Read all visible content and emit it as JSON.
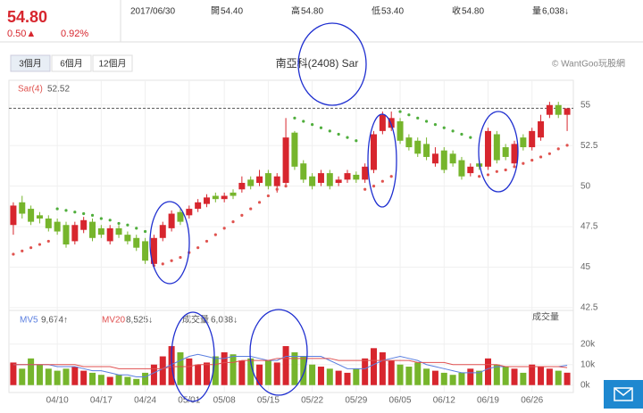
{
  "quote": {
    "price": "54.80",
    "change": "0.50▲",
    "change_pct": "0.92%",
    "date": "2017/06/30",
    "open_label": "開",
    "open": "54.40",
    "high_label": "高",
    "high": "54.80",
    "low_label": "低",
    "low": "53.40",
    "close_label": "收",
    "close": "54.80",
    "volume_label": "量",
    "volume": "6,038↓"
  },
  "range_buttons": [
    "3個月",
    "6個月",
    "12個月"
  ],
  "chart_data": {
    "type": "candlestick",
    "title": "南亞科(2408) Sar",
    "credit": "© WantGoo玩股網",
    "categories": [
      null,
      null,
      null,
      null,
      null,
      "04/10",
      null,
      null,
      null,
      null,
      "04/17",
      null,
      null,
      null,
      null,
      "04/24",
      null,
      null,
      null,
      null,
      "05/01",
      null,
      null,
      null,
      "05/08",
      null,
      null,
      null,
      null,
      "05/15",
      null,
      null,
      null,
      null,
      "05/22",
      null,
      null,
      null,
      null,
      "05/29",
      null,
      null,
      null,
      null,
      "06/05",
      null,
      null,
      null,
      null,
      "06/12",
      null,
      null,
      null,
      null,
      "06/19",
      null,
      null,
      null,
      null,
      "06/26",
      null,
      null,
      null,
      null
    ],
    "open": [
      47.6,
      49.0,
      48.6,
      48.2,
      48.0,
      47.8,
      47.6,
      46.6,
      47.3,
      47.8,
      47.4,
      46.6,
      47.4,
      47.0,
      46.8,
      46.6,
      45.2,
      46.8,
      47.4,
      48.4,
      48.2,
      48.6,
      48.9,
      49.4,
      49.2,
      49.6,
      49.8,
      50.4,
      50.2,
      50.8,
      50.0,
      50.2,
      53.3,
      51.4,
      50.6,
      50.2,
      50.8,
      50.2,
      50.4,
      50.7,
      50.4,
      51.0,
      53.4,
      53.6,
      54.0,
      53.0,
      52.8,
      52.6,
      51.4,
      52.2,
      52.0,
      51.6,
      50.8,
      51.4,
      51.2,
      53.2,
      52.4,
      51.4,
      53.0,
      52.4,
      53.0,
      54.4,
      55.0,
      54.4
    ],
    "high": [
      49.0,
      49.4,
      48.8,
      48.4,
      48.2,
      48.0,
      47.8,
      47.8,
      48.1,
      48.0,
      47.6,
      47.6,
      47.6,
      47.2,
      47.0,
      46.8,
      47.0,
      47.8,
      48.5,
      48.6,
      48.8,
      49.2,
      49.5,
      49.6,
      49.6,
      49.8,
      50.6,
      50.6,
      51.0,
      51.0,
      50.8,
      54.2,
      53.4,
      51.6,
      50.8,
      51.0,
      51.0,
      50.6,
      51.0,
      50.9,
      51.4,
      53.4,
      54.6,
      54.6,
      54.2,
      53.2,
      53.0,
      53.0,
      52.4,
      52.4,
      52.2,
      51.8,
      51.4,
      51.6,
      53.6,
      53.4,
      52.6,
      52.8,
      53.2,
      53.6,
      54.4,
      55.2,
      55.2,
      54.8
    ],
    "low": [
      47.0,
      48.0,
      47.6,
      47.7,
      47.2,
      47.0,
      46.2,
      46.4,
      47.1,
      46.6,
      46.8,
      46.4,
      46.8,
      46.4,
      46.0,
      45.2,
      45.0,
      46.6,
      47.2,
      47.6,
      48.0,
      48.4,
      48.7,
      49.0,
      49.0,
      49.2,
      49.6,
      49.8,
      50.0,
      49.8,
      49.6,
      50.0,
      51.0,
      50.2,
      49.8,
      50.0,
      49.8,
      50.0,
      50.2,
      50.2,
      50.2,
      50.8,
      53.2,
      53.4,
      52.6,
      52.2,
      51.8,
      51.6,
      51.2,
      50.8,
      51.2,
      50.4,
      50.6,
      51.0,
      51.0,
      51.4,
      51.6,
      51.2,
      52.2,
      52.2,
      52.8,
      54.2,
      54.2,
      53.4
    ],
    "close": [
      48.8,
      48.3,
      47.8,
      48.0,
      47.4,
      47.2,
      46.4,
      47.6,
      47.9,
      46.8,
      47.0,
      47.4,
      47.0,
      46.6,
      46.2,
      45.4,
      46.8,
      47.6,
      48.3,
      47.8,
      48.6,
      49.0,
      49.3,
      49.2,
      49.4,
      49.4,
      50.2,
      50.0,
      50.6,
      50.0,
      50.6,
      53.0,
      51.2,
      50.4,
      50.0,
      50.8,
      50.0,
      50.4,
      50.8,
      50.4,
      51.2,
      53.2,
      54.4,
      54.2,
      52.8,
      52.4,
      52.0,
      51.8,
      52.0,
      51.0,
      51.4,
      50.6,
      51.2,
      51.2,
      53.4,
      51.6,
      51.8,
      52.6,
      52.4,
      53.4,
      54.0,
      55.0,
      54.4,
      54.8
    ],
    "up_color": "#d7262e",
    "down_color": "#76b52c",
    "ylim": [
      42.33,
      56.53
    ],
    "yticks": [
      42.5,
      45,
      47.5,
      50,
      52.5,
      55
    ],
    "sar": {
      "label": "Sar(4)",
      "value_text": "52.52",
      "up_color": "#e0534f",
      "down_color": "#4fae3c",
      "values": [
        45.8,
        46.0,
        46.2,
        46.4,
        46.6,
        48.6,
        48.5,
        48.4,
        48.3,
        48.2,
        48.0,
        47.9,
        47.7,
        47.6,
        47.4,
        47.2,
        45.1,
        45.2,
        45.4,
        45.6,
        45.9,
        46.2,
        46.6,
        47.0,
        47.4,
        47.8,
        48.2,
        48.6,
        49.0,
        49.4,
        49.8,
        50.0,
        54.2,
        54.0,
        53.8,
        53.6,
        53.4,
        53.2,
        53.0,
        52.8,
        49.8,
        50.0,
        50.3,
        50.6,
        54.6,
        54.4,
        54.2,
        54.0,
        53.8,
        53.6,
        53.4,
        53.2,
        53.0,
        50.6,
        50.7,
        50.9,
        51.0,
        51.2,
        51.4,
        51.6,
        51.8,
        52.0,
        52.3,
        52.52
      ]
    },
    "volume": {
      "title": "成交量",
      "legend_label": "成交量",
      "legend_value": "6,038↓",
      "values": [
        11,
        8,
        13,
        10,
        8,
        7,
        8,
        9,
        7,
        6,
        5,
        4,
        5,
        4,
        3,
        6,
        10,
        14,
        19,
        16,
        13,
        10,
        11,
        14,
        16,
        15,
        12,
        13,
        10,
        12,
        11,
        19,
        16,
        14,
        10,
        9,
        8,
        7,
        6,
        8,
        13,
        18,
        16,
        12,
        10,
        9,
        11,
        8,
        7,
        6,
        5,
        6,
        8,
        7,
        13,
        10,
        9,
        8,
        6,
        10,
        9,
        8,
        7,
        6.038
      ],
      "ylim": [
        -3.6,
        36.4
      ],
      "yticks": [
        {
          "value": 0,
          "label": "0k"
        },
        {
          "value": 10,
          "label": "10k"
        },
        {
          "value": 20,
          "label": "20k"
        }
      ],
      "mv5": {
        "label": "MV5",
        "value_text": "9,674↑",
        "color": "#5b7fe0",
        "values": [
          10,
          10,
          10,
          10,
          10,
          9,
          9,
          9,
          8,
          7,
          7,
          6,
          5,
          5,
          4,
          4,
          6,
          8,
          10,
          12,
          14,
          15,
          14,
          13,
          13,
          14,
          14,
          14,
          13,
          12,
          12,
          14,
          14,
          14,
          14,
          14,
          12,
          10,
          8,
          8,
          8,
          10,
          12,
          13,
          14,
          13,
          12,
          10,
          9,
          8,
          7,
          6,
          6,
          6,
          8,
          9,
          9,
          9,
          9,
          9,
          9,
          9,
          9,
          9.674
        ]
      },
      "mv20": {
        "label": "MV20",
        "value_text": "8,525↓",
        "color": "#e05050",
        "values": [
          10,
          10,
          10,
          10,
          10,
          10,
          10,
          10,
          9,
          9,
          9,
          9,
          8,
          8,
          8,
          8,
          8,
          8,
          9,
          9,
          9,
          10,
          10,
          10,
          11,
          11,
          12,
          12,
          12,
          12,
          13,
          13,
          13,
          13,
          13,
          13,
          13,
          12,
          12,
          12,
          12,
          12,
          12,
          12,
          12,
          12,
          11,
          11,
          11,
          11,
          10,
          10,
          10,
          10,
          10,
          10,
          9,
          9,
          9,
          9,
          9,
          9,
          9,
          8.525
        ]
      }
    }
  }
}
